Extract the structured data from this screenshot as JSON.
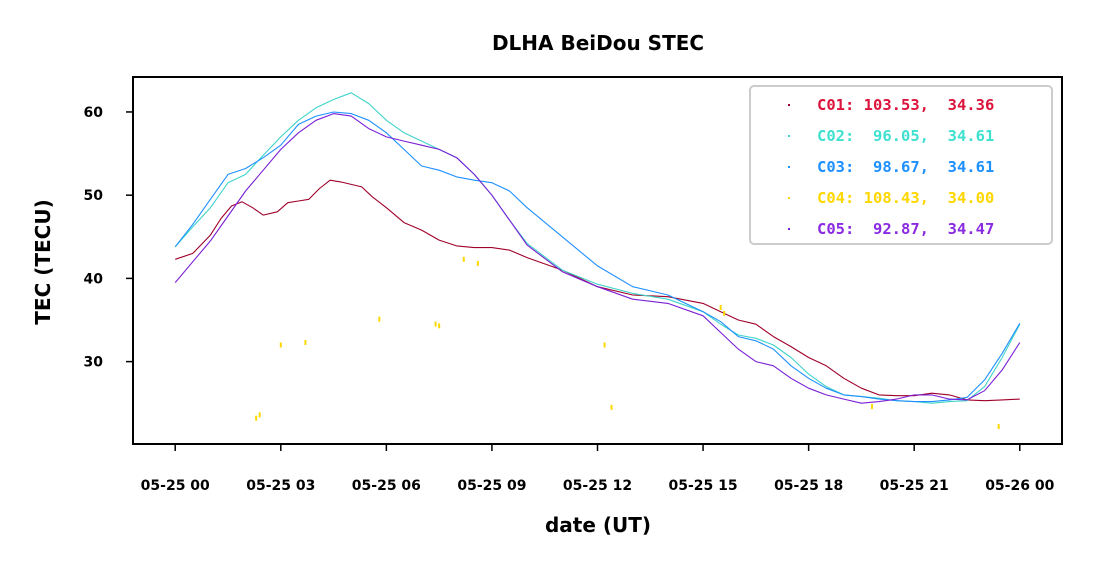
{
  "chart_data": {
    "type": "line",
    "title": "DLHA BeiDou STEC",
    "xlabel": "date (UT)",
    "ylabel": "TEC (TECU)",
    "x_unit": "hours since 05-25 00:00 UT",
    "xlim": [
      -1.2,
      25.2
    ],
    "ylim": [
      20.1,
      64.2
    ],
    "x_ticks": [
      {
        "value": 0,
        "label": "05-25 00"
      },
      {
        "value": 3,
        "label": "05-25 03"
      },
      {
        "value": 6,
        "label": "05-25 06"
      },
      {
        "value": 9,
        "label": "05-25 09"
      },
      {
        "value": 12,
        "label": "05-25 12"
      },
      {
        "value": 15,
        "label": "05-25 15"
      },
      {
        "value": 18,
        "label": "05-25 18"
      },
      {
        "value": 21,
        "label": "05-25 21"
      },
      {
        "value": 24,
        "label": "05-26 00"
      }
    ],
    "y_ticks": [
      {
        "value": 30,
        "label": "30"
      },
      {
        "value": 40,
        "label": "40"
      },
      {
        "value": 50,
        "label": "50"
      },
      {
        "value": 60,
        "label": "60"
      }
    ],
    "grid": false,
    "legend_position": "top-right",
    "series": [
      {
        "name": "C01",
        "color": "#dc143c",
        "line_color": "#a0002a",
        "style": "line",
        "legend_label": "C01: 103.53,  34.36",
        "x": [
          0,
          0.5,
          1.0,
          1.3,
          1.6,
          1.9,
          2.2,
          2.5,
          2.9,
          3.2,
          3.5,
          3.8,
          4.1,
          4.4,
          4.7,
          5.0,
          5.3,
          5.6,
          6.0,
          6.5,
          7.0,
          7.5,
          8.0,
          8.5,
          9.0,
          9.5,
          10.0,
          11.0,
          12.0,
          13.0,
          14.0,
          15.0,
          15.5,
          16.0,
          16.5,
          17.0,
          17.5,
          18.0,
          18.5,
          19.0,
          19.5,
          20.0,
          20.5,
          21.0,
          21.5,
          22.0,
          22.5,
          23.0,
          23.5,
          24.0
        ],
        "y": [
          42.3,
          43.0,
          45.2,
          47.2,
          48.7,
          49.2,
          48.5,
          47.6,
          48.0,
          49.1,
          49.3,
          49.5,
          50.8,
          51.8,
          51.6,
          51.3,
          51.0,
          49.8,
          48.5,
          46.7,
          45.8,
          44.6,
          43.9,
          43.7,
          43.7,
          43.4,
          42.5,
          41.0,
          39.0,
          38.0,
          37.8,
          37.0,
          36.0,
          35.0,
          34.5,
          33.0,
          31.8,
          30.5,
          29.5,
          28.0,
          26.8,
          26.0,
          25.9,
          25.9,
          26.2,
          26.0,
          25.4,
          25.3,
          25.4,
          25.5
        ]
      },
      {
        "name": "C02",
        "color": "#40e0d0",
        "line_color": "#3fd3c9",
        "style": "line",
        "legend_label": "C02:  96.05,  34.61",
        "x": [
          0,
          0.5,
          1.0,
          1.5,
          2.0,
          2.5,
          3.0,
          3.5,
          4.0,
          4.5,
          5.0,
          5.5,
          6.0,
          6.5,
          7.0,
          7.5,
          8.0,
          8.5,
          9.0,
          9.5,
          10.0,
          11.0,
          12.0,
          13.0,
          14.0,
          15.0,
          15.5,
          16.0,
          16.5,
          17.0,
          17.5,
          18.0,
          18.5,
          19.0,
          19.5,
          20.0,
          20.5,
          21.0,
          21.5,
          22.0,
          22.5,
          23.0,
          23.5,
          24.0
        ],
        "y": [
          43.8,
          46.2,
          48.5,
          51.5,
          52.5,
          54.8,
          57.0,
          59.0,
          60.5,
          61.5,
          62.3,
          61.0,
          59.0,
          57.5,
          56.5,
          55.5,
          54.5,
          52.5,
          50.0,
          47.0,
          44.2,
          41.0,
          39.3,
          38.2,
          37.5,
          36.0,
          34.5,
          33.2,
          32.8,
          32.0,
          30.5,
          28.5,
          27.0,
          26.0,
          25.8,
          25.6,
          25.3,
          25.2,
          25.0,
          25.2,
          25.3,
          27.0,
          30.5,
          34.5
        ]
      },
      {
        "name": "C03",
        "color": "#1e90ff",
        "line_color": "#1e90ff",
        "style": "line",
        "legend_label": "C03:  98.67,  34.61",
        "x": [
          0,
          0.5,
          1.0,
          1.5,
          2.0,
          2.5,
          3.0,
          3.5,
          4.0,
          4.5,
          5.0,
          5.5,
          6.0,
          6.5,
          7.0,
          7.5,
          8.0,
          8.5,
          9.0,
          9.5,
          10.0,
          11.0,
          12.0,
          13.0,
          14.0,
          15.0,
          15.5,
          16.0,
          16.5,
          17.0,
          17.5,
          18.0,
          18.5,
          19.0,
          19.5,
          20.0,
          20.5,
          21.0,
          21.5,
          22.0,
          22.5,
          23.0,
          23.5,
          24.0
        ],
        "y": [
          43.8,
          46.5,
          49.5,
          52.5,
          53.2,
          54.5,
          56.0,
          58.5,
          59.5,
          60.0,
          59.8,
          59.0,
          57.5,
          55.5,
          53.5,
          53.0,
          52.2,
          51.8,
          51.5,
          50.5,
          48.5,
          45.0,
          41.5,
          39.0,
          38.0,
          36.0,
          34.8,
          33.0,
          32.5,
          31.5,
          29.5,
          28.0,
          26.8,
          26.0,
          25.8,
          25.5,
          25.3,
          25.2,
          25.2,
          25.4,
          25.7,
          27.8,
          31.0,
          34.6
        ]
      },
      {
        "name": "C04",
        "color": "#ffd700",
        "line_color": "#ffd700",
        "style": "dots",
        "legend_label": "C04: 108.43,  34.00",
        "x": [
          2.3,
          2.4,
          3.0,
          3.7,
          5.8,
          7.4,
          7.5,
          8.2,
          8.6,
          12.2,
          12.4,
          15.5,
          15.6,
          19.8,
          23.4
        ],
        "y": [
          23.2,
          23.6,
          32.0,
          32.3,
          35.1,
          34.5,
          34.3,
          42.3,
          41.8,
          32.0,
          24.5,
          36.5,
          35.8,
          24.6,
          22.2
        ]
      },
      {
        "name": "C05",
        "color": "#8a2be2",
        "line_color": "#7a1fd6",
        "style": "line",
        "legend_label": "C05:  92.87,  34.47",
        "x": [
          0,
          0.5,
          1.0,
          1.5,
          2.0,
          2.5,
          3.0,
          3.5,
          4.0,
          4.5,
          5.0,
          5.5,
          6.0,
          6.5,
          7.0,
          7.5,
          8.0,
          8.5,
          9.0,
          9.5,
          10.0,
          11.0,
          12.0,
          13.0,
          14.0,
          15.0,
          15.5,
          16.0,
          16.5,
          17.0,
          17.5,
          18.0,
          18.5,
          19.0,
          19.5,
          20.0,
          20.5,
          21.0,
          21.5,
          22.0,
          22.5,
          23.0,
          23.5,
          24.0
        ],
        "y": [
          39.5,
          42.0,
          44.5,
          47.5,
          50.5,
          53.0,
          55.5,
          57.5,
          59.0,
          59.8,
          59.5,
          58.0,
          57.0,
          56.5,
          56.0,
          55.5,
          54.5,
          52.5,
          50.0,
          47.0,
          44.0,
          40.8,
          39.0,
          37.5,
          37.0,
          35.5,
          33.5,
          31.5,
          30.0,
          29.5,
          28.0,
          26.8,
          26.0,
          25.5,
          25.0,
          25.2,
          25.5,
          26.0,
          26.0,
          25.5,
          25.4,
          26.5,
          29.0,
          32.3
        ]
      }
    ]
  }
}
